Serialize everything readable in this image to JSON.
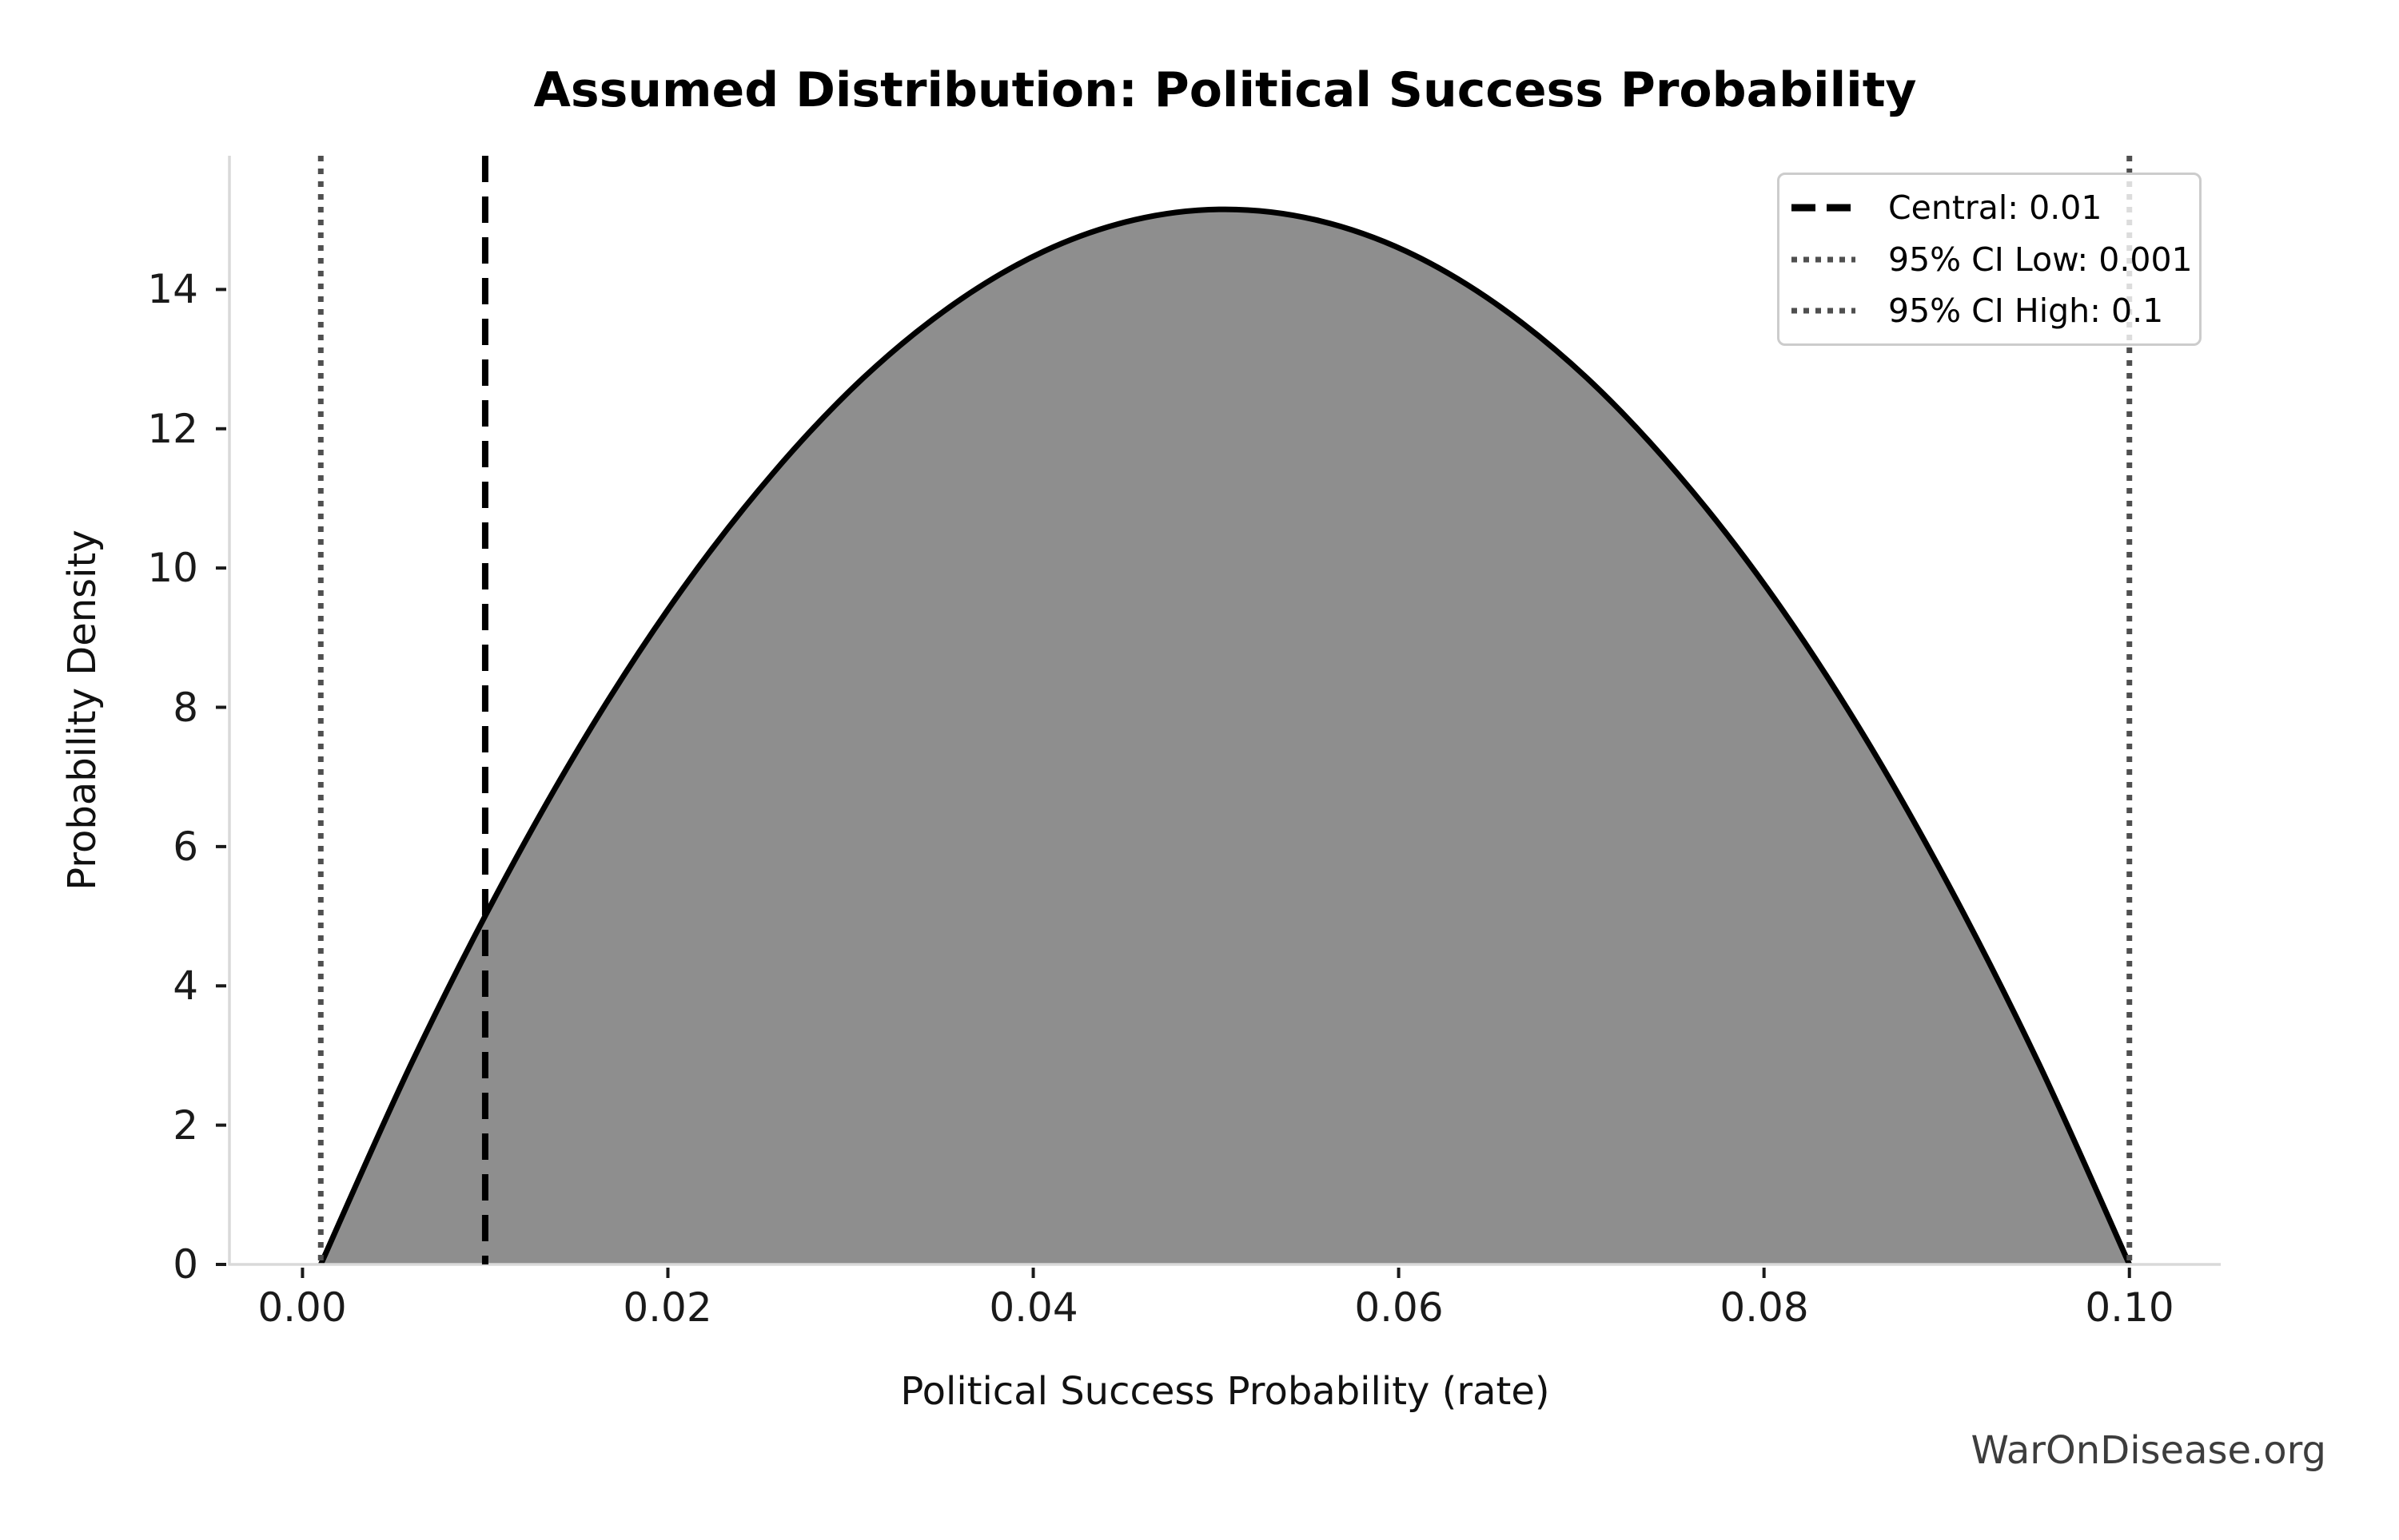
{
  "watermark": "WarOnDisease.org",
  "chart_data": {
    "type": "area",
    "title": "Assumed Distribution: Political Success Probability",
    "xlabel": "Political Success Probability (rate)",
    "ylabel": "Probability Density",
    "xlim": [
      -0.004,
      0.105
    ],
    "ylim": [
      0,
      15.92
    ],
    "grid": false,
    "x_ticks": {
      "values": [
        0.0,
        0.02,
        0.04,
        0.06,
        0.08,
        0.1
      ],
      "labels": [
        "0.00",
        "0.02",
        "0.04",
        "0.06",
        "0.08",
        "0.10"
      ]
    },
    "y_ticks": {
      "values": [
        0,
        2,
        4,
        6,
        8,
        10,
        12,
        14
      ],
      "labels": [
        "0",
        "2",
        "4",
        "6",
        "8",
        "10",
        "12",
        "14"
      ]
    },
    "series": [
      {
        "name": "political-success-probability-density",
        "distribution": "Beta(2,2) scaled to support",
        "support": [
          0.001,
          0.1
        ],
        "peak": {
          "x": 0.0505,
          "y": 15.15
        },
        "line_color": "#000000",
        "line_width": 7,
        "fill_color": "#8e8e8e",
        "points": [
          [
            0.001,
            0.0
          ],
          [
            0.00595,
            2.88
          ],
          [
            0.0109,
            5.45
          ],
          [
            0.01585,
            7.73
          ],
          [
            0.0208,
            9.7
          ],
          [
            0.02575,
            11.36
          ],
          [
            0.0307,
            12.73
          ],
          [
            0.03565,
            13.79
          ],
          [
            0.0406,
            14.55
          ],
          [
            0.04555,
            15.0
          ],
          [
            0.0505,
            15.15
          ],
          [
            0.05545,
            15.0
          ],
          [
            0.0604,
            14.55
          ],
          [
            0.06535,
            13.79
          ],
          [
            0.0703,
            12.73
          ],
          [
            0.07525,
            11.36
          ],
          [
            0.0802,
            9.7
          ],
          [
            0.08515,
            7.73
          ],
          [
            0.0901,
            5.45
          ],
          [
            0.09505,
            2.88
          ],
          [
            0.1,
            0.0
          ]
        ]
      }
    ],
    "vlines": [
      {
        "role": "central",
        "x": 0.01,
        "label": "Central: 0.01",
        "style": "dashed",
        "color": "#000000"
      },
      {
        "role": "ci_low",
        "x": 0.001,
        "label": "95% CI Low: 0.001",
        "style": "dotted",
        "color": "#4f4f4f"
      },
      {
        "role": "ci_high",
        "x": 0.1,
        "label": "95% CI High: 0.1",
        "style": "dotted",
        "color": "#4f4f4f"
      }
    ],
    "legend": {
      "position": "upper right",
      "entries": [
        {
          "label": "Central: 0.01",
          "line_style": "dashed",
          "color": "#000000"
        },
        {
          "label": "95% CI Low: 0.001",
          "line_style": "dotted",
          "color": "#4f4f4f"
        },
        {
          "label": "95% CI High: 0.1",
          "line_style": "dotted",
          "color": "#4f4f4f"
        }
      ]
    },
    "style": {
      "spine_color": "#d9d9d9",
      "tick_color": "#1a1a1a",
      "legend_border_color": "#cccccc",
      "watermark_color": "#3d3d3d"
    }
  }
}
